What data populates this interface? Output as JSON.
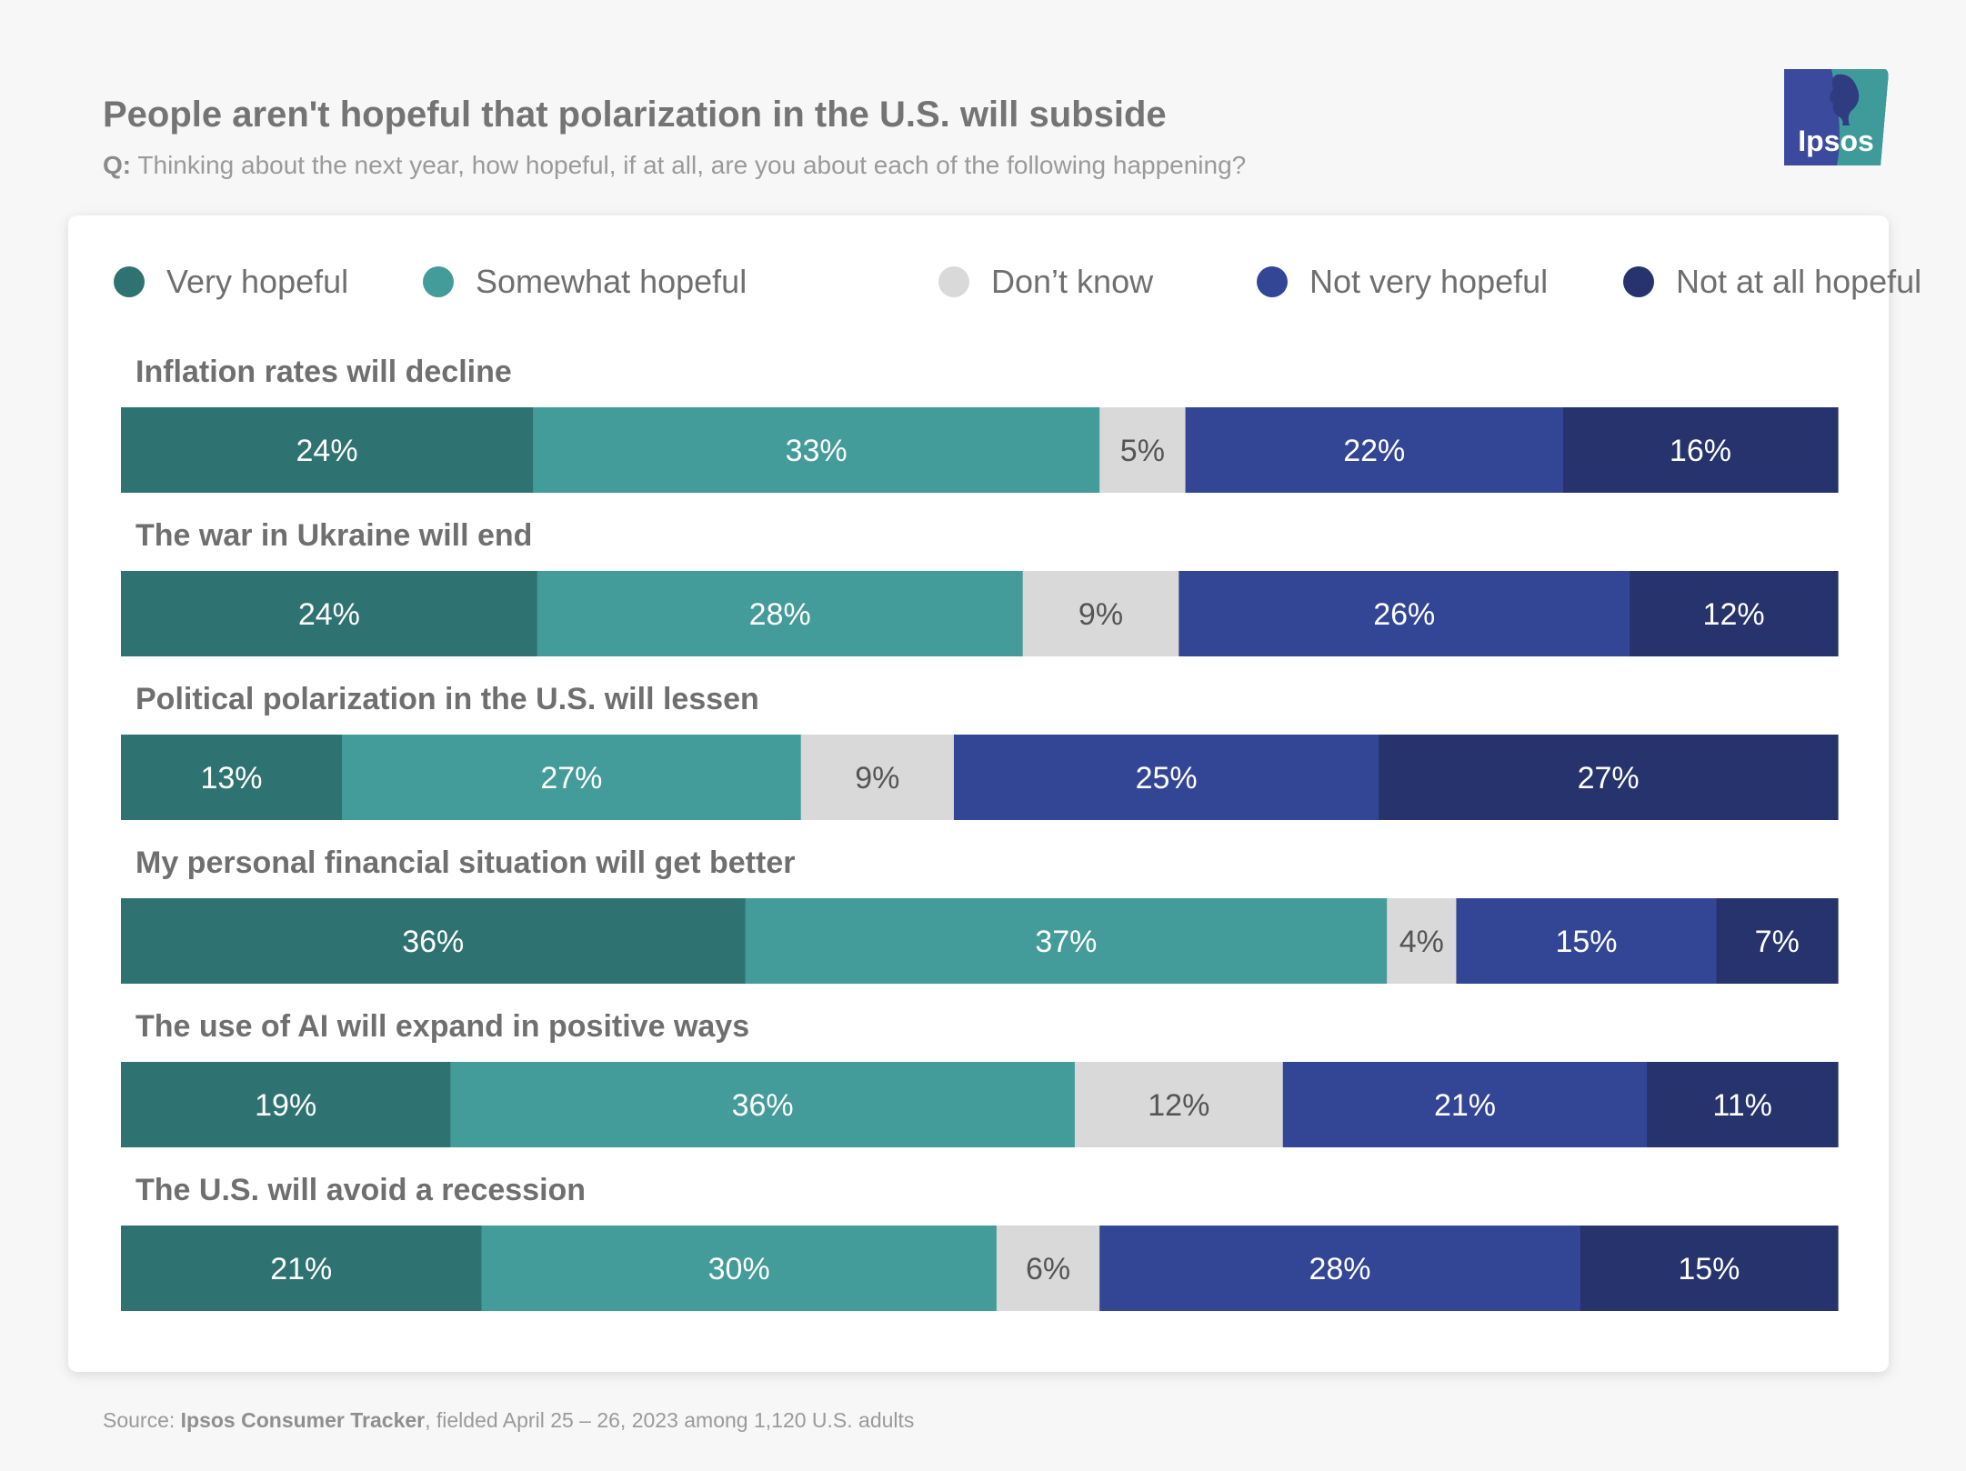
{
  "header": {
    "title": "People aren't hopeful that polarization in the U.S. will subside",
    "question_prefix": "Q:",
    "question_text": "Thinking about the next year, how hopeful, if at all, are you about each of the following happening?"
  },
  "logo": {
    "text": "Ipsos",
    "brand_color": "#3b4a9c",
    "accent_color": "#3f9a9a"
  },
  "footer": {
    "source_prefix": "Source:",
    "source_name": "Ipsos Consumer Tracker",
    "source_detail": ", fielded April 25 – 26, 2023 among 1,120 U.S. adults"
  },
  "chart_data": {
    "type": "bar",
    "orientation": "horizontal",
    "stacked": "100%",
    "legend_placement": "top",
    "categories": [
      "Inflation rates will decline",
      "The war in Ukraine will end",
      "Political polarization in the U.S. will lessen",
      "My personal financial situation will get better",
      "The use of AI will expand in positive ways",
      "The U.S. will avoid a recession"
    ],
    "series": [
      {
        "name": "Very hopeful",
        "color": "#2e7371",
        "text_color": "#ffffff",
        "values": [
          24,
          24,
          13,
          36,
          19,
          21
        ]
      },
      {
        "name": "Somewhat hopeful",
        "color": "#439b9a",
        "text_color": "#ffffff",
        "values": [
          33,
          28,
          27,
          37,
          36,
          30
        ]
      },
      {
        "name": "Don’t know",
        "color": "#d9d9d9",
        "text_color": "#555555",
        "values": [
          5,
          9,
          9,
          4,
          12,
          6
        ]
      },
      {
        "name": "Not very hopeful",
        "color": "#334696",
        "text_color": "#ffffff",
        "values": [
          22,
          26,
          25,
          15,
          21,
          28
        ]
      },
      {
        "name": "Not at all hopeful",
        "color": "#26336c",
        "text_color": "#ffffff",
        "values": [
          16,
          12,
          27,
          7,
          11,
          15
        ]
      }
    ],
    "value_suffix": "%"
  }
}
